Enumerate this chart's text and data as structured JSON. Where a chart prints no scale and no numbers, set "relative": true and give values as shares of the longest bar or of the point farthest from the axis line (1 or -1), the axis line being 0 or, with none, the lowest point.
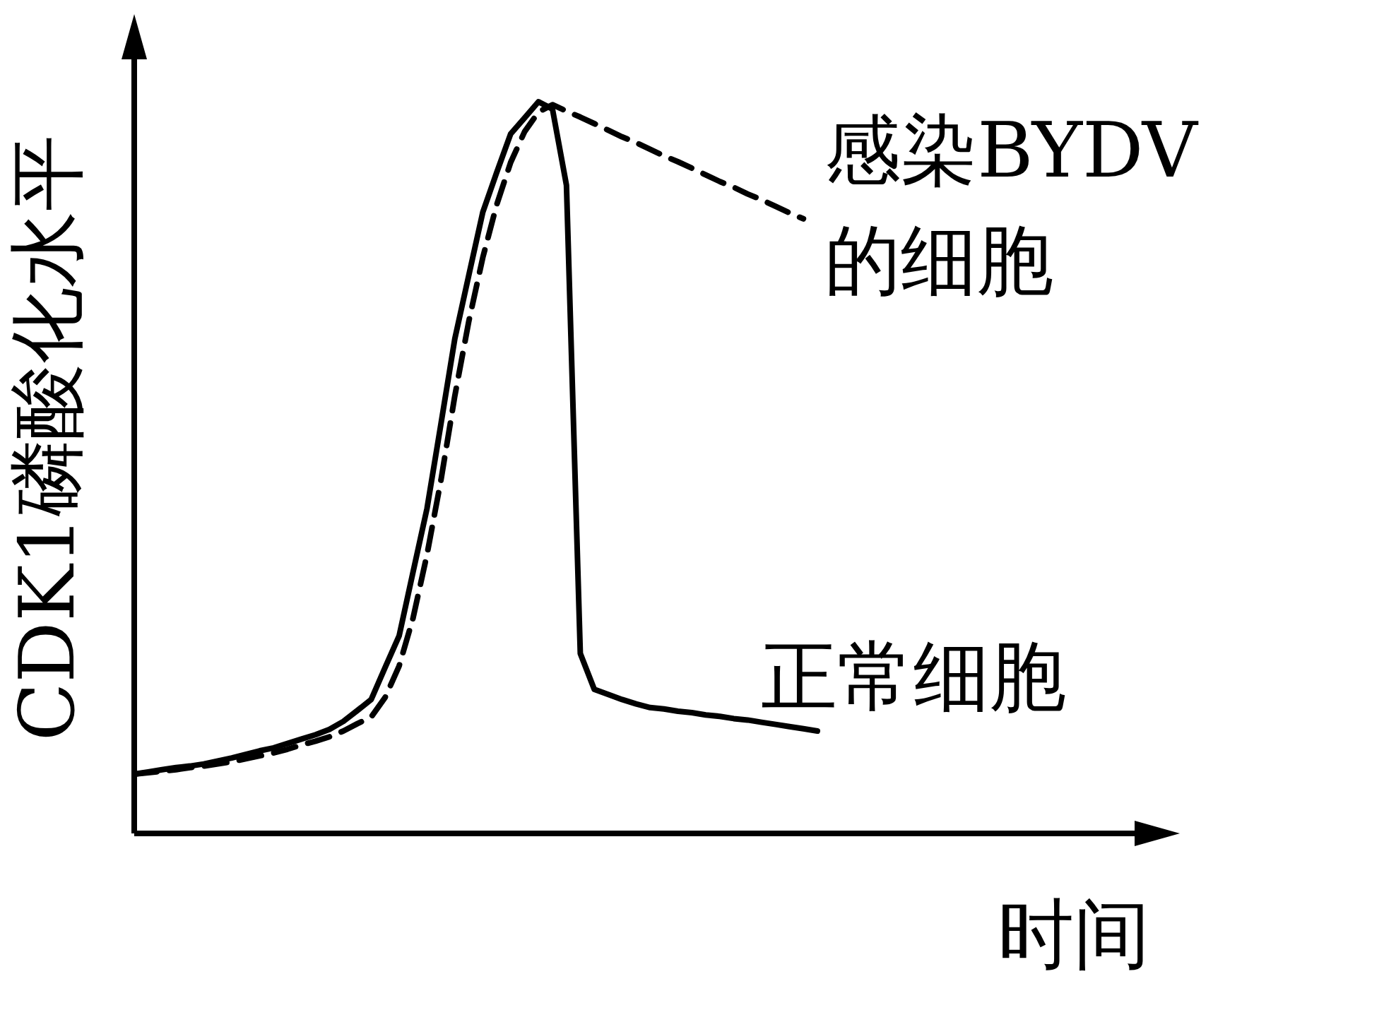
{
  "chart_data": {
    "type": "line",
    "relative": true,
    "xlabel": "时间",
    "ylabel": "CDK1磷酸化水平",
    "categories": [
      null,
      null,
      null,
      null,
      null,
      null,
      null,
      null,
      null,
      null,
      null,
      null,
      null,
      null,
      null,
      null,
      null,
      null,
      null,
      null,
      null,
      null,
      null,
      null,
      null,
      null,
      null,
      null,
      null,
      null,
      null,
      null,
      null,
      null,
      null,
      null,
      null,
      null,
      null,
      null,
      null,
      null,
      null,
      null,
      null,
      null,
      null,
      null,
      null,
      null
    ],
    "series": [
      {
        "name": "感染BYDV的细胞",
        "color": "#000000",
        "line_style": "dashed",
        "values": [
          0.081,
          0.083,
          0.085,
          0.087,
          0.09,
          0.092,
          0.095,
          0.098,
          0.102,
          0.106,
          0.11,
          0.115,
          0.121,
          0.126,
          0.132,
          0.14,
          0.15,
          0.159,
          0.186,
          0.229,
          0.294,
          0.381,
          0.483,
          0.598,
          0.7,
          0.787,
          0.859,
          0.917,
          0.959,
          0.986,
          0.996,
          0.987,
          0.979,
          0.97,
          0.961,
          0.952,
          0.944,
          0.935,
          0.926,
          0.918,
          0.909,
          0.9,
          0.891,
          0.883,
          0.874,
          0.866,
          0.857,
          0.848,
          0.84,
          null
        ]
      },
      {
        "name": "正常细胞",
        "color": "#000000",
        "line_style": "solid",
        "values": [
          0.081,
          0.084,
          0.087,
          0.09,
          0.092,
          0.095,
          0.099,
          0.103,
          0.108,
          0.113,
          0.117,
          0.123,
          0.129,
          0.135,
          0.142,
          0.153,
          0.168,
          0.183,
          0.227,
          0.27,
          0.357,
          0.444,
          0.56,
          0.676,
          0.763,
          0.849,
          0.903,
          0.956,
          0.978,
          1.0,
          0.99,
          0.886,
          0.246,
          0.197,
          0.19,
          0.183,
          0.177,
          0.172,
          0.17,
          0.167,
          0.165,
          0.162,
          0.16,
          0.157,
          0.155,
          0.152,
          0.149,
          0.146,
          0.143,
          0.14
        ]
      }
    ]
  }
}
